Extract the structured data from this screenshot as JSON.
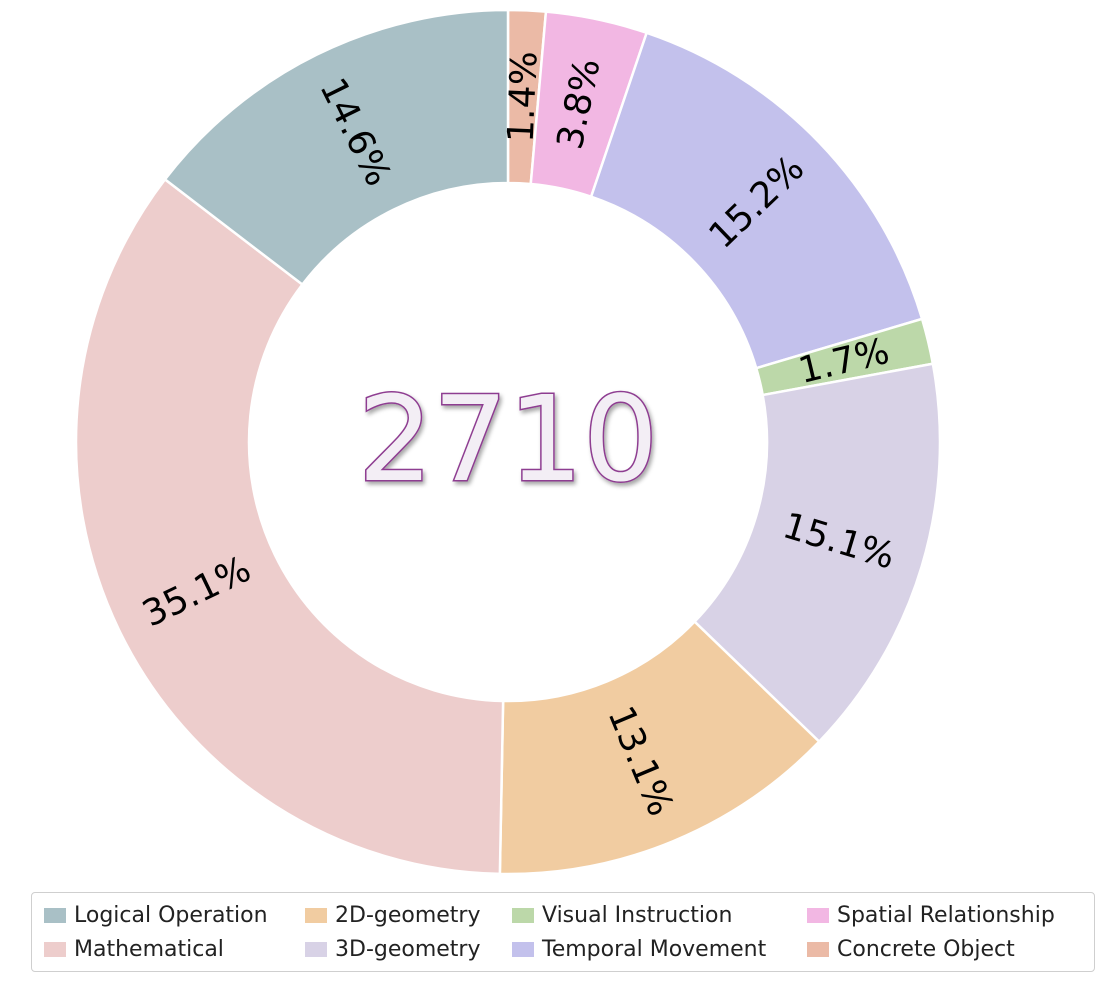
{
  "chart_data": {
    "type": "pie",
    "donut": true,
    "center_label": "2710",
    "center_label_style": {
      "fill": "#f3eef5",
      "stroke": "#8e3d91"
    },
    "start_direction": "top",
    "direction": "clockwise",
    "legend_position": "bottom",
    "slices": [
      {
        "name": "Concrete Object",
        "value": 1.4,
        "label": "1.4%",
        "color": "#ebbaa6"
      },
      {
        "name": "Spatial Relationship",
        "value": 3.8,
        "label": "3.8%",
        "color": "#f2b7e3"
      },
      {
        "name": "Temporal Movement",
        "value": 15.2,
        "label": "15.2%",
        "color": "#c3c1ec"
      },
      {
        "name": "Visual Instruction",
        "value": 1.7,
        "label": "1.7%",
        "color": "#bcd8a9"
      },
      {
        "name": "3D-geometry",
        "value": 15.1,
        "label": "15.1%",
        "color": "#d8d2e6"
      },
      {
        "name": "2D-geometry",
        "value": 13.1,
        "label": "13.1%",
        "color": "#f1cca1"
      },
      {
        "name": "Mathematical",
        "value": 35.1,
        "label": "35.1%",
        "color": "#edcdcc"
      },
      {
        "name": "Logical Operation",
        "value": 14.6,
        "label": "14.6%",
        "color": "#a9c0c6"
      }
    ],
    "legend": [
      {
        "label": "Logical Operation",
        "color": "#a9c0c6"
      },
      {
        "label": "Mathematical",
        "color": "#edcdcc"
      },
      {
        "label": "2D-geometry",
        "color": "#f1cca1"
      },
      {
        "label": "3D-geometry",
        "color": "#d8d2e6"
      },
      {
        "label": "Visual Instruction",
        "color": "#bcd8a9"
      },
      {
        "label": "Temporal Movement",
        "color": "#c3c1ec"
      },
      {
        "label": "Spatial Relationship",
        "color": "#f2b7e3"
      },
      {
        "label": "Concrete Object",
        "color": "#ebbaa6"
      }
    ]
  }
}
